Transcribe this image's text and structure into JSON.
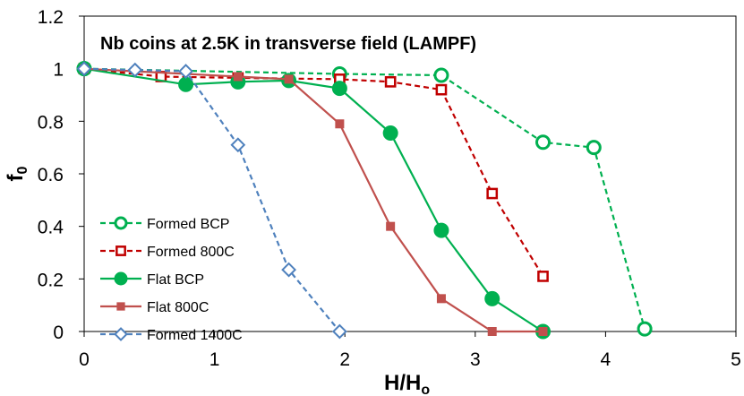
{
  "chart_data": {
    "type": "line",
    "title": "Nb coins at 2.5K in transverse field (LAMPF)",
    "xlabel": {
      "main": "H/H",
      "sub": "o"
    },
    "ylabel": {
      "main": "f",
      "sub": "0"
    },
    "xlim": [
      0,
      5
    ],
    "ylim": [
      0,
      1.2
    ],
    "x_ticks": [
      "0",
      "1",
      "2",
      "3",
      "4",
      "5"
    ],
    "y_ticks": [
      "0",
      "0.2",
      "0.4",
      "0.6",
      "0.8",
      "1",
      "1.2"
    ],
    "grid": false,
    "legend_position": "left",
    "series": [
      {
        "name": "Formed BCP",
        "color": "#00B050",
        "marker": "circle-open",
        "line": "dashed",
        "points": [
          [
            0,
            1.0
          ],
          [
            1.96,
            0.98
          ],
          [
            2.74,
            0.975
          ],
          [
            3.52,
            0.72
          ],
          [
            3.91,
            0.7
          ],
          [
            4.3,
            0.01
          ]
        ]
      },
      {
        "name": "Formed 800C",
        "color": "#C00000",
        "marker": "square-open",
        "line": "dashed",
        "points": [
          [
            0,
            1.0
          ],
          [
            0.59,
            0.97
          ],
          [
            1.18,
            0.965
          ],
          [
            1.96,
            0.96
          ],
          [
            2.35,
            0.95
          ],
          [
            2.74,
            0.92
          ],
          [
            3.13,
            0.525
          ],
          [
            3.52,
            0.21
          ]
        ]
      },
      {
        "name": "Flat BCP",
        "color": "#00B050",
        "marker": "circle-filled",
        "line": "solid",
        "points": [
          [
            0,
            1.0
          ],
          [
            0.78,
            0.94
          ],
          [
            1.18,
            0.95
          ],
          [
            1.57,
            0.955
          ],
          [
            1.96,
            0.925
          ],
          [
            2.35,
            0.755
          ],
          [
            2.74,
            0.385
          ],
          [
            3.13,
            0.125
          ],
          [
            3.52,
            0.0
          ]
        ]
      },
      {
        "name": "Flat 800C",
        "color": "#C0504D",
        "marker": "square-filled",
        "line": "solid",
        "points": [
          [
            0,
            1.0
          ],
          [
            1.18,
            0.97
          ],
          [
            1.57,
            0.96
          ],
          [
            1.96,
            0.79
          ],
          [
            2.35,
            0.4
          ],
          [
            2.74,
            0.125
          ],
          [
            3.13,
            0.0
          ],
          [
            3.52,
            0.0
          ]
        ]
      },
      {
        "name": "Formed 1400C",
        "color": "#4F81BD",
        "marker": "diamond-open",
        "line": "dashed",
        "points": [
          [
            0,
            1.0
          ],
          [
            0.39,
            0.995
          ],
          [
            0.78,
            0.99
          ],
          [
            1.18,
            0.71
          ],
          [
            1.57,
            0.235
          ],
          [
            1.96,
            0.0
          ]
        ]
      }
    ]
  }
}
